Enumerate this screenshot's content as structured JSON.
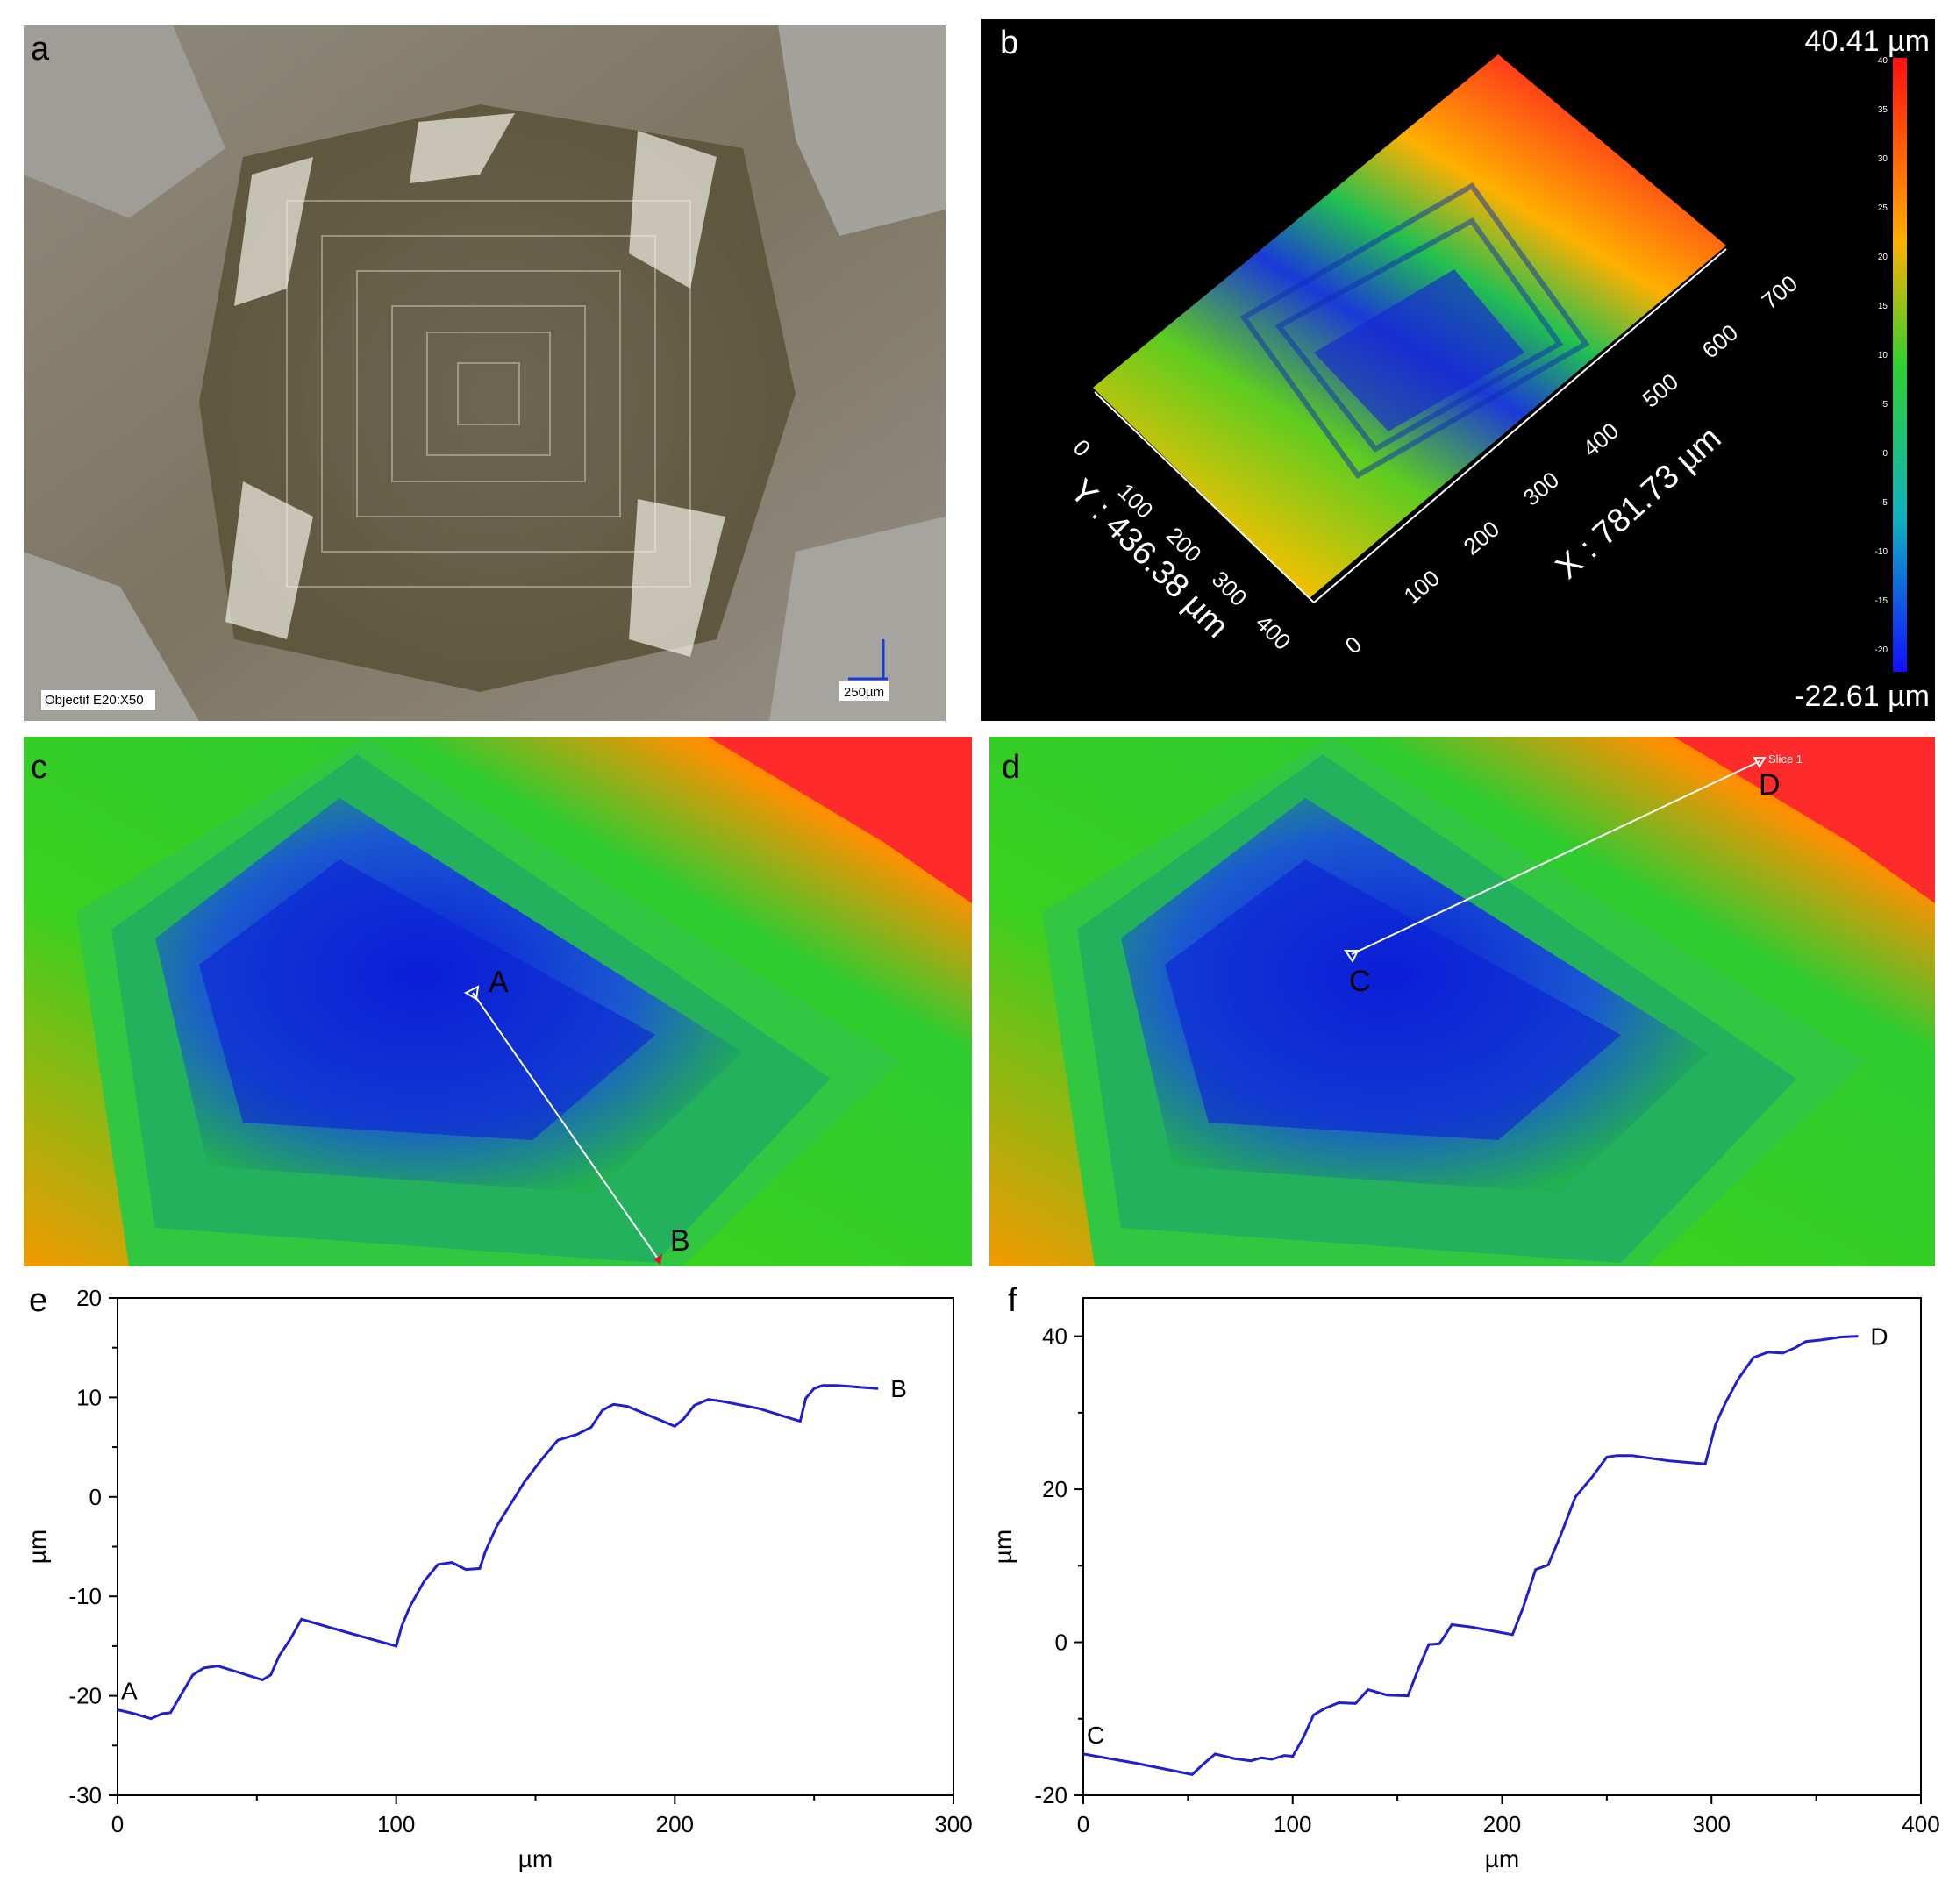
{
  "panels": {
    "a": {
      "label": "a",
      "objective_text": "Objectif E20:X50",
      "scale_text": "250µm"
    },
    "b": {
      "label": "b",
      "legend_max": "40.41 µm",
      "legend_min": "-22.61 µm",
      "legend_ticks": [
        "40",
        "35",
        "30",
        "25",
        "20",
        "15",
        "10",
        "5",
        "0",
        "-5",
        "-10",
        "-15",
        "-20"
      ],
      "y_axis_title": "Y : 436.38 µm",
      "x_axis_title": "X : 781.73 µm",
      "y_ticks": [
        "0",
        "100",
        "200",
        "300",
        "400"
      ],
      "x_ticks": [
        "0",
        "100",
        "200",
        "300",
        "400",
        "500",
        "600",
        "700"
      ]
    },
    "c": {
      "label": "c",
      "point_a": "A",
      "point_b": "B"
    },
    "d": {
      "label": "d",
      "point_c": "C",
      "point_d": "D",
      "slice_label": "Slice 1"
    },
    "e": {
      "label": "e",
      "start_label": "A",
      "end_label": "B"
    },
    "f": {
      "label": "f",
      "start_label": "C",
      "end_label": "D"
    }
  },
  "colors": {
    "profile_line": "#1f1fd0",
    "hot": "#ff1a1a",
    "warm": "#ffd000",
    "mid": "#22cc22",
    "cold": "#0a1ad8"
  },
  "chart_data": [
    {
      "id": "e",
      "type": "line",
      "xlabel": "µm",
      "ylabel": "µm",
      "xlim": [
        0,
        300
      ],
      "ylim": [
        -30,
        20
      ],
      "xticks": [
        0,
        100,
        200,
        300
      ],
      "yticks": [
        -30,
        -20,
        -10,
        0,
        10,
        20
      ],
      "x": [
        0,
        6,
        12,
        16,
        19,
        23,
        27,
        31,
        36,
        44,
        52,
        55,
        58,
        62,
        66,
        82,
        100,
        102,
        105,
        110,
        115,
        120,
        125,
        130,
        132,
        136,
        140,
        146,
        152,
        158,
        165,
        170,
        174,
        178,
        183,
        200,
        203,
        207,
        212,
        217,
        230,
        245,
        247,
        250,
        253,
        258,
        263,
        268,
        273
      ],
      "values": [
        -21.4,
        -21.8,
        -22.3,
        -21.8,
        -21.7,
        -19.8,
        -17.9,
        -17.2,
        -17.0,
        -17.7,
        -18.4,
        -17.9,
        -16.0,
        -14.3,
        -12.3,
        -13.6,
        -15.0,
        -13.0,
        -11.0,
        -8.5,
        -6.8,
        -6.6,
        -7.3,
        -7.2,
        -5.5,
        -3.0,
        -1.2,
        1.5,
        3.7,
        5.7,
        6.3,
        7.0,
        8.7,
        9.3,
        9.1,
        7.1,
        7.8,
        9.2,
        9.8,
        9.6,
        8.9,
        7.6,
        9.9,
        10.9,
        11.2,
        11.2,
        11.1,
        11.0,
        10.9
      ]
    },
    {
      "id": "f",
      "type": "line",
      "xlabel": "µm",
      "ylabel": "µm",
      "xlim": [
        0,
        400
      ],
      "ylim": [
        -20,
        45
      ],
      "xticks": [
        0,
        100,
        200,
        300,
        400
      ],
      "yticks": [
        -20,
        0,
        20,
        40
      ],
      "x": [
        0,
        25,
        52,
        57,
        63,
        72,
        80,
        85,
        90,
        96,
        100,
        105,
        110,
        115,
        122,
        130,
        136,
        145,
        155,
        160,
        165,
        170,
        173,
        176,
        185,
        205,
        210,
        216,
        222,
        228,
        235,
        243,
        250,
        255,
        262,
        280,
        297,
        302,
        307,
        313,
        320,
        327,
        334,
        340,
        345,
        352,
        362,
        370
      ],
      "values": [
        -14.6,
        -15.8,
        -17.3,
        -16.0,
        -14.6,
        -15.2,
        -15.5,
        -15.1,
        -15.3,
        -14.8,
        -14.9,
        -12.5,
        -9.5,
        -8.7,
        -7.9,
        -8.0,
        -6.2,
        -6.9,
        -7.0,
        -3.5,
        -0.3,
        -0.2,
        1.0,
        2.3,
        2.0,
        1.0,
        4.5,
        9.5,
        10.1,
        14.0,
        19.0,
        21.6,
        24.2,
        24.4,
        24.4,
        23.7,
        23.3,
        28.5,
        31.5,
        34.5,
        37.2,
        37.9,
        37.8,
        38.5,
        39.3,
        39.5,
        39.9,
        40.0
      ]
    }
  ]
}
